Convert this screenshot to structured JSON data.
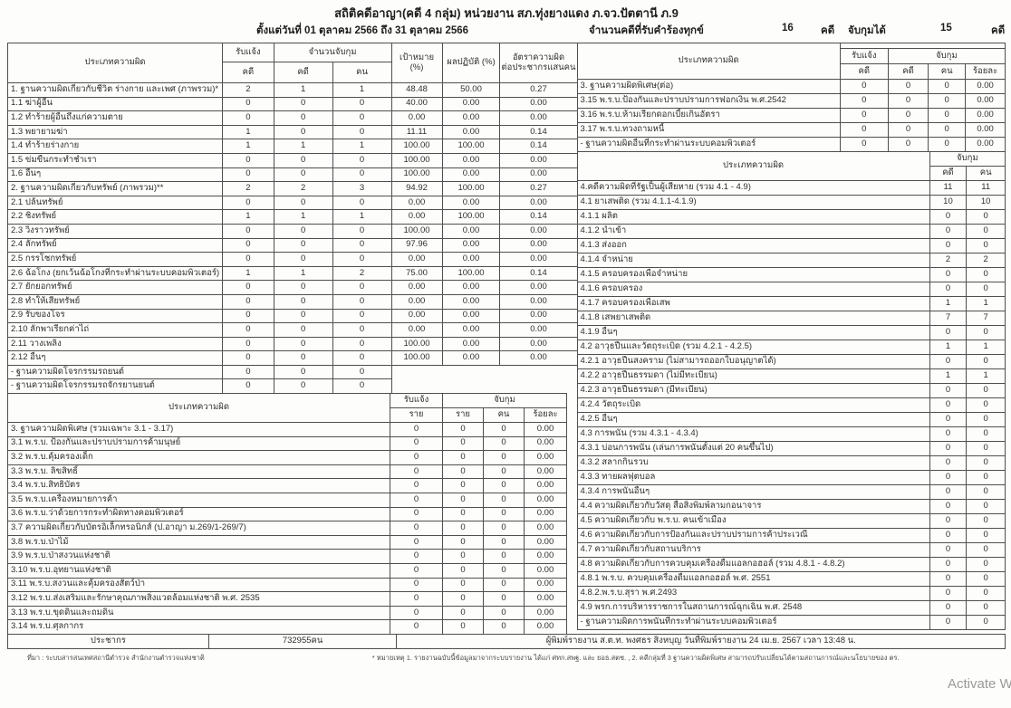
{
  "page": {
    "title": "สถิติคดีอาญา(คดี 4 กลุ่ม) หน่วยงาน สภ.ทุ่งยางแดง ภ.จว.ปัตตานี ภ.9",
    "date_range": "ตั้งแต่วันที่ 01 ตุลาคม 2566 ถึง 31 ตุลาคม 2566",
    "summary": {
      "complaints_label": "จำนวนคดีที่รับคำร้องทุกข์",
      "complaints_value": "16",
      "complaints_unit": "คดี",
      "arrests_label": "จับกุมได้",
      "arrests_value": "15",
      "arrests_unit": "คดี"
    }
  },
  "left": {
    "main": {
      "header": {
        "offense": "ประเภทความผิด",
        "reported": "รับแจ้ง",
        "reported_cases": "คดี",
        "arrests": "จำนวนจับกุม",
        "arrest_cases": "คดี",
        "arrest_persons": "คน",
        "target": "เป้าหมาย",
        "target_unit": "(%)",
        "performance": "ผลปฏิบัติ (%)",
        "rate_line1": "อัตราความผิด",
        "rate_line2": "ต่อประชากรแสนคน"
      },
      "rows": [
        {
          "label": "1. ฐานความผิดเกี่ยวกับชีวิต ร่างกาย และเพศ (ภาพรวม)*",
          "values": [
            "2",
            "1",
            "1",
            "48.48",
            "50.00",
            "0.27"
          ]
        },
        {
          "label": "1.1 ฆ่าผู้อื่น",
          "values": [
            "0",
            "0",
            "0",
            "40.00",
            "0.00",
            "0.00"
          ]
        },
        {
          "label": "1.2 ทำร้ายผู้อื่นถึงแก่ความตาย",
          "values": [
            "0",
            "0",
            "0",
            "0.00",
            "0.00",
            "0.00"
          ]
        },
        {
          "label": "1.3 พยายามฆ่า",
          "values": [
            "1",
            "0",
            "0",
            "11.11",
            "0.00",
            "0.14"
          ]
        },
        {
          "label": "1.4 ทำร้ายร่างกาย",
          "values": [
            "1",
            "1",
            "1",
            "100.00",
            "100.00",
            "0.14"
          ]
        },
        {
          "label": "1.5 ข่มขืนกระทำชำเรา",
          "values": [
            "0",
            "0",
            "0",
            "100.00",
            "0.00",
            "0.00"
          ]
        },
        {
          "label": "1.6 อื่นๆ",
          "values": [
            "0",
            "0",
            "0",
            "100.00",
            "0.00",
            "0.00"
          ]
        },
        {
          "label": "2. ฐานความผิดเกี่ยวกับทรัพย์ (ภาพรวม)**",
          "values": [
            "2",
            "2",
            "3",
            "94.92",
            "100.00",
            "0.27"
          ]
        },
        {
          "label": "2.1 ปล้นทรัพย์",
          "values": [
            "0",
            "0",
            "0",
            "0.00",
            "0.00",
            "0.00"
          ]
        },
        {
          "label": "2.2 ชิงทรัพย์",
          "values": [
            "1",
            "1",
            "1",
            "0.00",
            "100.00",
            "0.14"
          ]
        },
        {
          "label": "2.3 วิ่งราวทรัพย์",
          "values": [
            "0",
            "0",
            "0",
            "100.00",
            "0.00",
            "0.00"
          ]
        },
        {
          "label": "2.4 ลักทรัพย์",
          "values": [
            "0",
            "0",
            "0",
            "97.96",
            "0.00",
            "0.00"
          ]
        },
        {
          "label": "2.5 กรรโชกทรัพย์",
          "values": [
            "0",
            "0",
            "0",
            "0.00",
            "0.00",
            "0.00"
          ]
        },
        {
          "label": "2.6 ฉ้อโกง (ยกเว้นฉ้อโกงที่กระทำผ่านระบบคอมพิวเตอร์)",
          "values": [
            "1",
            "1",
            "2",
            "75.00",
            "100.00",
            "0.14"
          ]
        },
        {
          "label": "2.7 ยักยอกทรัพย์",
          "values": [
            "0",
            "0",
            "0",
            "0.00",
            "0.00",
            "0.00"
          ]
        },
        {
          "label": "2.8 ทำให้เสียทรัพย์",
          "values": [
            "0",
            "0",
            "0",
            "0.00",
            "0.00",
            "0.00"
          ]
        },
        {
          "label": "2.9 รับของโจร",
          "values": [
            "0",
            "0",
            "0",
            "0.00",
            "0.00",
            "0.00"
          ]
        },
        {
          "label": "2.10 ลักพาเรียกค่าไถ่",
          "values": [
            "0",
            "0",
            "0",
            "0.00",
            "0.00",
            "0.00"
          ]
        },
        {
          "label": "2.11 วางเพลิง",
          "values": [
            "0",
            "0",
            "0",
            "100.00",
            "0.00",
            "0.00"
          ]
        },
        {
          "label": "2.12 อื่นๆ",
          "values": [
            "0",
            "0",
            "0",
            "100.00",
            "0.00",
            "0.00"
          ]
        },
        {
          "label": "- ฐานความผิดโจรกรรมรถยนต์",
          "values": [
            "0",
            "0",
            "0"
          ],
          "blank_tail": 3
        },
        {
          "label": "- ฐานความผิดโจรกรรมรถจักรยานยนต์",
          "values": [
            "0",
            "0",
            "0"
          ],
          "blank_tail": 3
        }
      ]
    },
    "special": {
      "header": {
        "offense": "ประเภทความผิด",
        "reported": "รับแจ้ง",
        "reported_sub": "ราย",
        "arrest": "จับกุม",
        "arrest_col1": "ราย",
        "arrest_col2": "คน",
        "arrest_col3": "ร้อยละ"
      },
      "rows": [
        {
          "label": "3. ฐานความผิดพิเศษ (รวมเฉพาะ 3.1 - 3.17)",
          "values": [
            "0",
            "0",
            "0",
            "0.00"
          ]
        },
        {
          "label": "3.1 พ.ร.บ. ป้องกันและปราบปรามการค้ามนุษย์",
          "values": [
            "0",
            "0",
            "0",
            "0.00"
          ]
        },
        {
          "label": "3.2 พ.ร.บ.คุ้มครองเด็ก",
          "values": [
            "0",
            "0",
            "0",
            "0.00"
          ]
        },
        {
          "label": "3.3 พ.ร.บ. ลิขสิทธิ์",
          "values": [
            "0",
            "0",
            "0",
            "0.00"
          ]
        },
        {
          "label": "3.4 พ.ร.บ.สิทธิบัตร",
          "values": [
            "0",
            "0",
            "0",
            "0.00"
          ]
        },
        {
          "label": "3.5 พ.ร.บ.เครื่องหมายการค้า",
          "values": [
            "0",
            "0",
            "0",
            "0.00"
          ]
        },
        {
          "label": "3.6 พ.ร.บ.ว่าด้วยการกระทำผิดทางคอมพิวเตอร์",
          "values": [
            "0",
            "0",
            "0",
            "0.00"
          ]
        },
        {
          "label": "3.7 ความผิดเกี่ยวกับบัตรอิเล็กทรอนิกส์ (ป.อาญา ม.269/1-269/7)",
          "values": [
            "0",
            "0",
            "0",
            "0.00"
          ]
        },
        {
          "label": "3.8 พ.ร.บ.ป่าไม้",
          "values": [
            "0",
            "0",
            "0",
            "0.00"
          ]
        },
        {
          "label": "3.9 พ.ร.บ.ป่าสงวนแห่งชาติ",
          "values": [
            "0",
            "0",
            "0",
            "0.00"
          ]
        },
        {
          "label": "3.10 พ.ร.บ.อุทยานแห่งชาติ",
          "values": [
            "0",
            "0",
            "0",
            "0.00"
          ]
        },
        {
          "label": "3.11 พ.ร.บ.สงวนและคุ้มครองสัตว์ป่า",
          "values": [
            "0",
            "0",
            "0",
            "0.00"
          ]
        },
        {
          "label": "3.12 พ.ร.บ.ส่งเสริมและรักษาคุณภาพสิ่งแวดล้อมแห่งชาติ พ.ศ. 2535",
          "values": [
            "0",
            "0",
            "0",
            "0.00"
          ]
        },
        {
          "label": "3.13 พ.ร.บ.ขุดดินและถมดิน",
          "values": [
            "0",
            "0",
            "0",
            "0.00"
          ]
        },
        {
          "label": "3.14 พ.ร.บ.ศุลกากร",
          "values": [
            "0",
            "0",
            "0",
            "0.00"
          ]
        }
      ]
    }
  },
  "right": {
    "special": {
      "header": {
        "offense": "ประเภทความผิด",
        "reported": "รับแจ้ง",
        "reported_sub": "คดี",
        "arrest": "จับกุม",
        "arrest_col1": "คดี",
        "arrest_col2": "คน",
        "arrest_col3": "ร้อยละ"
      },
      "rows": [
        {
          "label": "3. ฐานความผิดพิเศษ(ต่อ)",
          "values": [
            "0",
            "0",
            "0",
            "0.00"
          ]
        },
        {
          "label": "3.15 พ.ร.บ.ป้องกันและปราบปรามการฟอกเงิน พ.ศ.2542",
          "values": [
            "0",
            "0",
            "0",
            "0.00"
          ]
        },
        {
          "label": "3.16 พ.ร.บ.ห้ามเรียกดอกเบี้ยเกินอัตรา",
          "values": [
            "0",
            "0",
            "0",
            "0.00"
          ]
        },
        {
          "label": "3.17 พ.ร.บ.ทวงถามหนี้",
          "values": [
            "0",
            "0",
            "0",
            "0.00"
          ]
        },
        {
          "label": "- ฐานความผิดอื่นที่กระทำผ่านระบบคอมพิวเตอร์",
          "values": [
            "0",
            "0",
            "0",
            "0.00"
          ]
        }
      ]
    },
    "state": {
      "header": {
        "offense": "ประเภทความผิด",
        "arrest": "จับกุม",
        "arrest_cases": "คดี",
        "arrest_persons": "คน"
      },
      "rows": [
        {
          "label": "4.คดีความผิดที่รัฐเป็นผู้เสียหาย (รวม 4.1 - 4.9)",
          "values": [
            "11",
            "11"
          ]
        },
        {
          "label": "4.1 ยาเสพติด (รวม 4.1.1-4.1.9)",
          "values": [
            "10",
            "10"
          ]
        },
        {
          "label": "4.1.1 ผลิต",
          "values": [
            "0",
            "0"
          ]
        },
        {
          "label": "4.1.2 นำเข้า",
          "values": [
            "0",
            "0"
          ]
        },
        {
          "label": "4.1.3 ส่งออก",
          "values": [
            "0",
            "0"
          ]
        },
        {
          "label": "4.1.4 จำหน่าย",
          "values": [
            "2",
            "2"
          ]
        },
        {
          "label": "4.1.5 ครอบครองเพื่อจำหน่าย",
          "values": [
            "0",
            "0"
          ]
        },
        {
          "label": "4.1.6 ครอบครอง",
          "values": [
            "0",
            "0"
          ]
        },
        {
          "label": "4.1.7 ครอบครองเพื่อเสพ",
          "values": [
            "1",
            "1"
          ]
        },
        {
          "label": "4.1.8 เสพยาเสพติด",
          "values": [
            "7",
            "7"
          ]
        },
        {
          "label": "4.1.9 อื่นๆ",
          "values": [
            "0",
            "0"
          ]
        },
        {
          "label": "4.2 อาวุธปืนและวัตถุระเบิด (รวม 4.2.1 - 4.2.5)",
          "values": [
            "1",
            "1"
          ]
        },
        {
          "label": "4.2.1 อาวุธปืนสงคราม (ไม่สามารถออกใบอนุญาตได้)",
          "values": [
            "0",
            "0"
          ]
        },
        {
          "label": "4.2.2 อาวุธปืนธรรมดา (ไม่มีทะเบียน)",
          "values": [
            "1",
            "1"
          ]
        },
        {
          "label": "4.2.3 อาวุธปืนธรรมดา (มีทะเบียน)",
          "values": [
            "0",
            "0"
          ]
        },
        {
          "label": "4.2.4 วัตถุระเบิด",
          "values": [
            "0",
            "0"
          ]
        },
        {
          "label": "4.2.5 อื่นๆ",
          "values": [
            "0",
            "0"
          ]
        },
        {
          "label": "4.3 การพนัน (รวม 4.3.1 - 4.3.4)",
          "values": [
            "0",
            "0"
          ]
        },
        {
          "label": "4.3.1 บ่อนการพนัน (เล่นการพนันตั้งแต่ 20 คนขึ้นไป)",
          "values": [
            "0",
            "0"
          ]
        },
        {
          "label": "4.3.2 สลากกินรวบ",
          "values": [
            "0",
            "0"
          ]
        },
        {
          "label": "4.3.3 ทายผลฟุตบอล",
          "values": [
            "0",
            "0"
          ]
        },
        {
          "label": "4.3.4 การพนันอื่นๆ",
          "values": [
            "0",
            "0"
          ]
        },
        {
          "label": "4.4 ความผิดเกี่ยวกับวัสดุ สื่อสิ่งพิมพ์ลามกอนาจาร",
          "values": [
            "0",
            "0"
          ]
        },
        {
          "label": "4.5 ความผิดเกี่ยวกับ พ.ร.บ. คนเข้าเมือง",
          "values": [
            "0",
            "0"
          ]
        },
        {
          "label": "4.6 ความผิดเกี่ยวกับการป้องกันและปราบปรามการค้าประเวณี",
          "values": [
            "0",
            "0"
          ]
        },
        {
          "label": "4.7 ความผิดเกี่ยวกับสถานบริการ",
          "values": [
            "0",
            "0"
          ]
        },
        {
          "label": "4.8 ความผิดเกี่ยวกับการควบคุมเครื่องดื่มแอลกอฮอล์ (รวม 4.8.1 - 4.8.2)",
          "values": [
            "0",
            "0"
          ]
        },
        {
          "label": "4.8.1 พ.ร.บ. ควบคุมเครื่องดื่มแอลกอฮอล์ พ.ศ. 2551",
          "values": [
            "0",
            "0"
          ]
        },
        {
          "label": "4.8.2.พ.ร.บ.สุรา พ.ศ.2493",
          "values": [
            "0",
            "0"
          ]
        },
        {
          "label": "4.9 พรก.การบริหารราชการในสถานการณ์ฉุกเฉิน พ.ศ. 2548",
          "values": [
            "0",
            "0"
          ]
        },
        {
          "label": "- ฐานความผิดการพนันที่กระทำผ่านระบบคอมพิวเตอร์",
          "values": [
            "0",
            "0"
          ]
        }
      ]
    }
  },
  "footer": {
    "population_label": "ประชากร",
    "population_value": "732955คน",
    "printed_by": "ผู้พิมพ์รายงาน ส.ต.ท. พงศธร สิงหบุญ วันที่พิมพ์รายงาน 24 เม.ย. 2567  เวลา 13:48 น."
  },
  "notes": {
    "source": "ที่มา : ระบบสารสนเทศสถานีตำรวจ สำนักงานตำรวจแห่งชาติ",
    "remark": "* หมายเหตุ   1. รายงานฉบับนี้ข้อมูลมาจากระบบรายงาน ได้แก่ ศทก.สพฐ. และ ยอธ.สตช. , 2. คดีกลุ่มที่ 3 ฐานความผิดพิเศษ สามารถปรับเปลี่ยนได้ตามสถานการณ์และนโยบายของ ตร."
  },
  "watermark": "Activate Windows"
}
